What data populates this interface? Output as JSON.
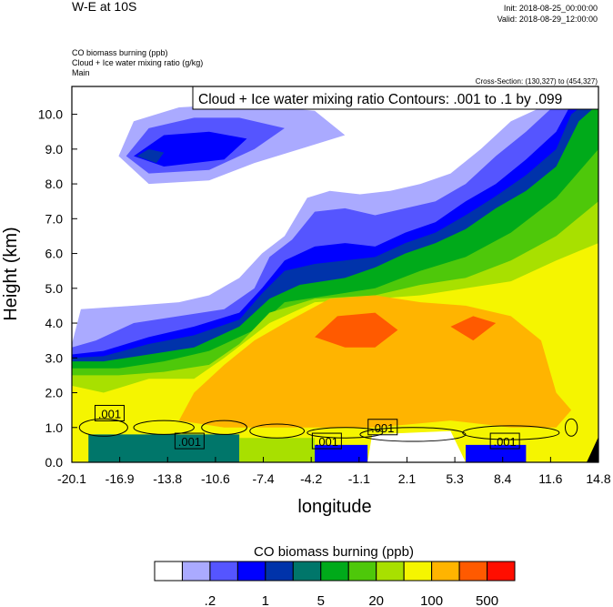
{
  "header": {
    "title": "W-E at 10S",
    "init": "Init: 2018-08-25_00:00:00",
    "valid": "Valid: 2018-08-29_12:00:00",
    "field1": "CO biomass burning   (ppb)",
    "field2": "Cloud + Ice water mixing ratio    (g/kg)",
    "field3": "Main",
    "cross_section": "Cross-Section: (130,327) to (454,327)",
    "contour_info": "Cloud + Ice water mixing ratio Contours: .001 to .1 by .099"
  },
  "chart_data": {
    "type": "heatmap",
    "title": "W-E at 10S",
    "xlabel": "longitude",
    "ylabel": "Height (km)",
    "xlim": [
      -20.1,
      14.8
    ],
    "ylim": [
      0,
      10.8
    ],
    "xticks": [
      "-20.1",
      "-16.9",
      "-13.8",
      "-10.6",
      "-7.4",
      "-4.2",
      "-1.1",
      "2.1",
      "5.3",
      "8.4",
      "11.6",
      "14.8"
    ],
    "yticks": [
      "0.0",
      "1.0",
      "2.0",
      "3.0",
      "4.0",
      "5.0",
      "6.0",
      "7.0",
      "8.0",
      "9.0",
      "10.0"
    ],
    "colorbar": {
      "title": "CO biomass burning  (ppb)",
      "colors": [
        "#ffffff",
        "#aaaaff",
        "#5555ff",
        "#0000ff",
        "#0033aa",
        "#00766a",
        "#00aa1a",
        "#4ec80a",
        "#a8e000",
        "#f5f500",
        "#ffb400",
        "#ff5a00",
        "#ff0e00"
      ],
      "labels": [
        ".2",
        "1",
        "5",
        "20",
        "100",
        "500"
      ]
    },
    "fill_regions": [
      {
        "level": 1,
        "top": [
          [
            -20.1,
            3.4
          ],
          [
            -19.5,
            4.4
          ],
          [
            -16,
            4.5
          ],
          [
            -13,
            4.6
          ],
          [
            -11,
            4.8
          ],
          [
            -9,
            5.3
          ],
          [
            -7.5,
            6
          ],
          [
            -6,
            6.5
          ],
          [
            -4.5,
            7.6
          ],
          [
            -3,
            7.8
          ],
          [
            -1,
            7.7
          ],
          [
            1,
            7.8
          ],
          [
            3,
            8
          ],
          [
            5,
            8.3
          ],
          [
            7,
            9
          ],
          [
            9,
            9.8
          ],
          [
            11,
            10.2
          ],
          [
            12,
            10.8
          ],
          [
            14.8,
            10.8
          ]
        ]
      },
      {
        "level": 2,
        "top": [
          [
            -20.1,
            3.3
          ],
          [
            -18.5,
            3.5
          ],
          [
            -16,
            4
          ],
          [
            -13,
            4.2
          ],
          [
            -10,
            4.4
          ],
          [
            -8,
            5
          ],
          [
            -7,
            5.9
          ],
          [
            -5.5,
            6.4
          ],
          [
            -4,
            7.2
          ],
          [
            -2,
            7.3
          ],
          [
            0,
            7.1
          ],
          [
            2,
            7.3
          ],
          [
            4,
            7.5
          ],
          [
            6,
            8
          ],
          [
            8,
            8.8
          ],
          [
            10,
            9.5
          ],
          [
            12,
            10.3
          ],
          [
            13,
            10.8
          ],
          [
            14.8,
            10.8
          ]
        ]
      },
      {
        "level": 3,
        "top": [
          [
            -20.1,
            3.1
          ],
          [
            -18,
            3.2
          ],
          [
            -15,
            3.6
          ],
          [
            -12,
            3.9
          ],
          [
            -9,
            4.3
          ],
          [
            -7.5,
            5
          ],
          [
            -6,
            5.8
          ],
          [
            -4,
            6.2
          ],
          [
            -2,
            6.3
          ],
          [
            0,
            6.2
          ],
          [
            2,
            6.6
          ],
          [
            4,
            6.9
          ],
          [
            6,
            7.5
          ],
          [
            8,
            8
          ],
          [
            10,
            8.7
          ],
          [
            12,
            9.5
          ],
          [
            13,
            10.3
          ],
          [
            14.8,
            10.8
          ]
        ]
      },
      {
        "level": 4,
        "top": [
          [
            -20.1,
            3.0
          ],
          [
            -18,
            3.05
          ],
          [
            -15,
            3.4
          ],
          [
            -12,
            3.65
          ],
          [
            -9,
            4.1
          ],
          [
            -7.5,
            4.85
          ],
          [
            -6,
            5.5
          ],
          [
            -4,
            5.7
          ],
          [
            -2,
            5.8
          ],
          [
            0,
            5.9
          ],
          [
            2,
            6.3
          ],
          [
            4,
            6.6
          ],
          [
            6,
            7.1
          ],
          [
            8,
            7.65
          ],
          [
            10,
            8.25
          ],
          [
            12,
            9.0
          ],
          [
            13,
            10.0
          ],
          [
            14.8,
            10.6
          ]
        ]
      },
      {
        "level": 6,
        "top": [
          [
            -20.1,
            2.9
          ],
          [
            -18,
            2.9
          ],
          [
            -15,
            3.1
          ],
          [
            -12,
            3.3
          ],
          [
            -9,
            3.9
          ],
          [
            -7,
            4.7
          ],
          [
            -5,
            5.1
          ],
          [
            -2,
            5.3
          ],
          [
            0,
            5.6
          ],
          [
            2,
            6
          ],
          [
            4,
            6.3
          ],
          [
            6,
            6.7
          ],
          [
            8,
            7.3
          ],
          [
            10,
            7.8
          ],
          [
            12,
            8.5
          ],
          [
            13.5,
            9.8
          ],
          [
            14.8,
            10.3
          ]
        ]
      },
      {
        "level": 7,
        "top": [
          [
            -20.1,
            2.7
          ],
          [
            -17,
            2.7
          ],
          [
            -14,
            2.9
          ],
          [
            -11,
            3.2
          ],
          [
            -8,
            3.8
          ],
          [
            -6,
            4.6
          ],
          [
            -3,
            4.8
          ],
          [
            0,
            5
          ],
          [
            3,
            5.5
          ],
          [
            6,
            5.9
          ],
          [
            9,
            6.6
          ],
          [
            12,
            7.6
          ],
          [
            14.8,
            9
          ]
        ]
      },
      {
        "level": 8,
        "top": [
          [
            -20.1,
            2.5
          ],
          [
            -17,
            2.5
          ],
          [
            -14,
            2.6
          ],
          [
            -11,
            2.8
          ],
          [
            -9,
            3.4
          ],
          [
            -7,
            4.3
          ],
          [
            -4,
            4.7
          ],
          [
            0,
            4.8
          ],
          [
            3,
            5.1
          ],
          [
            6,
            5.3
          ],
          [
            9,
            5.8
          ],
          [
            12,
            6.5
          ],
          [
            14.8,
            7.5
          ]
        ]
      },
      {
        "level": 9,
        "top": [
          [
            -20.1,
            2.2
          ],
          [
            -18,
            2.0
          ],
          [
            -15,
            2.4
          ],
          [
            -12,
            2.4
          ],
          [
            -10,
            3
          ],
          [
            -7,
            4
          ],
          [
            -4,
            4.6
          ],
          [
            0,
            4.7
          ],
          [
            3,
            4.8
          ],
          [
            6,
            5
          ],
          [
            9,
            5.2
          ],
          [
            12,
            5.8
          ],
          [
            14.8,
            6.3
          ]
        ]
      },
      {
        "level": 10,
        "poly": [
          [
            -13,
            1.2
          ],
          [
            -12,
            2
          ],
          [
            -10,
            2.8
          ],
          [
            -8,
            3.5
          ],
          [
            -6,
            4
          ],
          [
            -3,
            4.7
          ],
          [
            0,
            4.8
          ],
          [
            3,
            4.6
          ],
          [
            6,
            4.5
          ],
          [
            9,
            4.2
          ],
          [
            11,
            3.5
          ],
          [
            12,
            2
          ],
          [
            13,
            1.5
          ],
          [
            12,
            1
          ],
          [
            9,
            1
          ],
          [
            5,
            1.2
          ],
          [
            0,
            1
          ],
          [
            -5,
            1
          ],
          [
            -10,
            1
          ]
        ]
      },
      {
        "level": 11,
        "poly": [
          [
            -4,
            3.6
          ],
          [
            -2.5,
            4.2
          ],
          [
            0,
            4.3
          ],
          [
            1.5,
            3.8
          ],
          [
            0,
            3.3
          ],
          [
            -2,
            3.3
          ]
        ]
      },
      {
        "level": 11,
        "poly": [
          [
            5,
            3.9
          ],
          [
            6.5,
            4.2
          ],
          [
            8,
            4
          ],
          [
            6.5,
            3.5
          ]
        ]
      },
      {
        "level": 1,
        "poly": [
          [
            -17,
            8.8
          ],
          [
            -16,
            9.8
          ],
          [
            -13,
            10.2
          ],
          [
            -9,
            10.3
          ],
          [
            -4,
            10.1
          ],
          [
            -2,
            9.4
          ],
          [
            -5,
            9.0
          ],
          [
            -8,
            8.6
          ],
          [
            -11,
            8.1
          ],
          [
            -15,
            8.0
          ]
        ]
      },
      {
        "level": 2,
        "poly": [
          [
            -16.5,
            8.8
          ],
          [
            -15,
            9.6
          ],
          [
            -12,
            9.9
          ],
          [
            -9,
            9.9
          ],
          [
            -6,
            9.6
          ],
          [
            -8,
            9.0
          ],
          [
            -11,
            8.4
          ],
          [
            -15,
            8.3
          ]
        ]
      },
      {
        "level": 3,
        "poly": [
          [
            -16,
            8.8
          ],
          [
            -14,
            9.4
          ],
          [
            -11,
            9.5
          ],
          [
            -8.5,
            9.3
          ],
          [
            -10,
            8.7
          ],
          [
            -14,
            8.5
          ]
        ]
      },
      {
        "level": 4,
        "poly": [
          [
            -15.8,
            8.8
          ],
          [
            -15,
            9.0
          ],
          [
            -14,
            8.9
          ],
          [
            -14.5,
            8.6
          ]
        ]
      },
      {
        "level": 5,
        "poly": [
          [
            -19,
            0
          ],
          [
            -19,
            0.8
          ],
          [
            -9,
            0.8
          ],
          [
            -9,
            0
          ]
        ]
      },
      {
        "level": 8,
        "poly": [
          [
            -9,
            0
          ],
          [
            -9,
            0.7
          ],
          [
            -4,
            0.7
          ],
          [
            -4,
            0
          ]
        ]
      },
      {
        "level": 3,
        "poly": [
          [
            -4,
            0
          ],
          [
            -4,
            0.5
          ],
          [
            -0.5,
            0.5
          ],
          [
            -0.5,
            0
          ]
        ]
      },
      {
        "level": 0,
        "poly": [
          [
            -0.5,
            0
          ],
          [
            -0.2,
            0.8
          ],
          [
            5,
            0.9
          ],
          [
            6,
            0
          ]
        ]
      },
      {
        "level": 3,
        "poly": [
          [
            6,
            0
          ],
          [
            6,
            0.5
          ],
          [
            10,
            0.5
          ],
          [
            10,
            0
          ]
        ]
      }
    ],
    "contour_labels": [
      {
        "text": ".001",
        "lon": -17.6,
        "h": 1.4
      },
      {
        "text": ".001",
        "lon": -12.3,
        "h": 0.6
      },
      {
        "text": ".001",
        "lon": -3.2,
        "h": 0.6
      },
      {
        "text": ".001",
        "lon": 0.5,
        "h": 1.0
      },
      {
        "text": ".001",
        "lon": 8.6,
        "h": 0.6
      }
    ]
  }
}
